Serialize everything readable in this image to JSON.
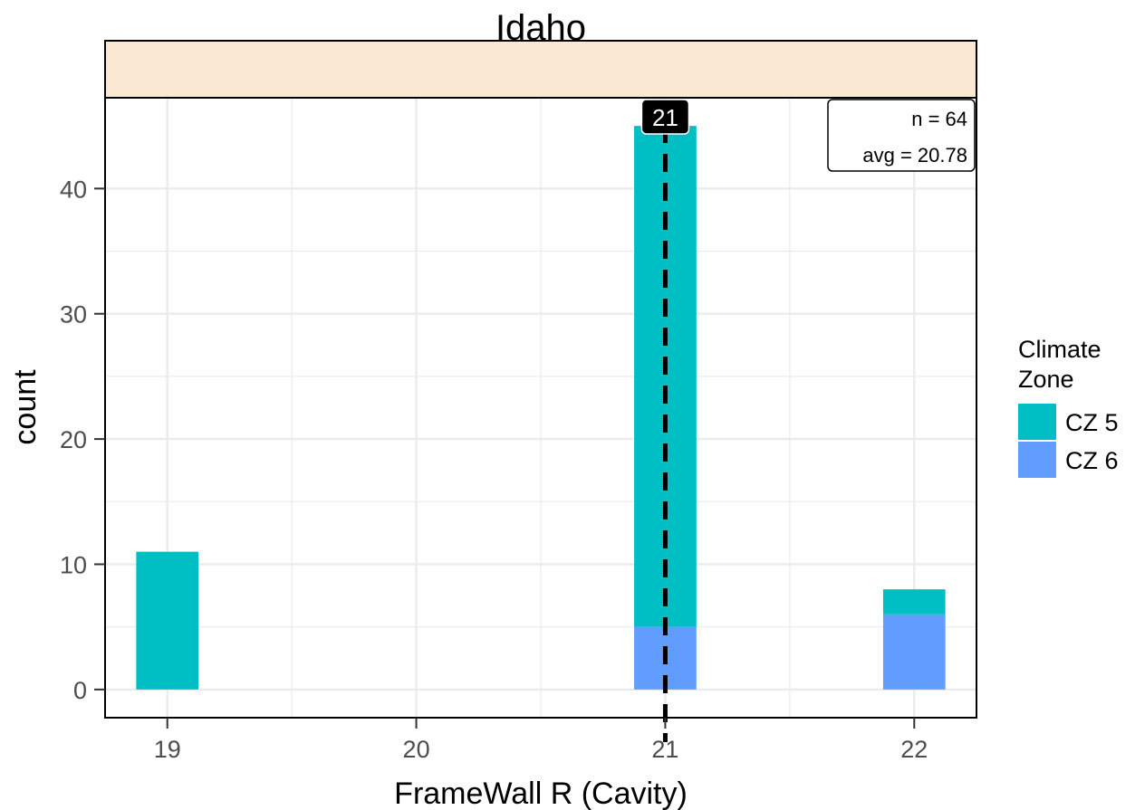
{
  "chart_data": {
    "type": "bar",
    "title": "Idaho",
    "xlabel": "FrameWall R (Cavity)",
    "ylabel": "count",
    "x_ticks": [
      "19",
      "20",
      "21",
      "22"
    ],
    "y_ticks": [
      "0",
      "10",
      "20",
      "30",
      "40"
    ],
    "xlim": [
      18.75,
      22.25
    ],
    "ylim": [
      -2.25,
      47.25
    ],
    "stacked": true,
    "grid": true,
    "series": [
      {
        "name": "CZ 5",
        "color": "#00BFC4",
        "points": [
          {
            "x": 19,
            "y": 11
          },
          {
            "x": 21,
            "y": 40
          },
          {
            "x": 22,
            "y": 2
          }
        ]
      },
      {
        "name": "CZ 6",
        "color": "#619CFF",
        "points": [
          {
            "x": 19,
            "y": 0
          },
          {
            "x": 21,
            "y": 5
          },
          {
            "x": 22,
            "y": 6
          }
        ]
      }
    ],
    "reference_line": {
      "x": 21,
      "label": "21",
      "style": "dashed"
    },
    "annotation": {
      "n_text": "n = 64",
      "avg_text": "avg = 20.78",
      "placement": "top-right"
    },
    "legend": {
      "title_line1": "Climate",
      "title_line2": "Zone",
      "placement": "right"
    }
  },
  "colors": {
    "strip_fill": "#FAE8D2",
    "grid": "#EBEBEB",
    "axis_text": "#4D4D4D"
  }
}
